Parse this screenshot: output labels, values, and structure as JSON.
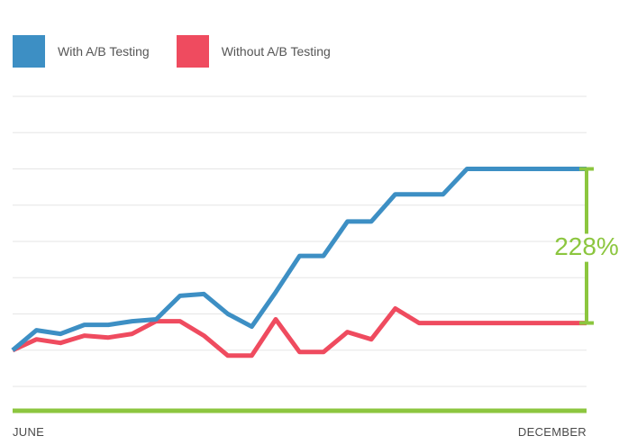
{
  "legend": [
    {
      "label": "With A/B Testing",
      "color": "#3d8fc4"
    },
    {
      "label": "Without A/B Testing",
      "color": "#ef4b5f"
    }
  ],
  "delta_label": "228%",
  "delta_color": "#8cc63f",
  "chart_data": {
    "type": "line",
    "xlabel_start": "JUNE",
    "xlabel_end": "DECEMBER",
    "x": [
      0,
      1,
      2,
      3,
      4,
      5,
      6,
      7,
      8,
      9,
      10,
      11,
      12,
      13,
      14,
      15,
      16,
      17,
      18,
      19,
      20,
      21,
      22,
      23,
      24
    ],
    "ylim": [
      0,
      8
    ],
    "series": [
      {
        "name": "With A/B Testing",
        "color": "#3d8fc4",
        "values": [
          1.0,
          1.55,
          1.45,
          1.7,
          1.7,
          1.8,
          1.85,
          2.5,
          2.55,
          2.0,
          1.65,
          2.6,
          3.6,
          3.6,
          4.55,
          4.55,
          5.3,
          5.3,
          5.3,
          6.0,
          6.0,
          6.0,
          6.0,
          6.0,
          6.0
        ]
      },
      {
        "name": "Without A/B Testing",
        "color": "#ef4b5f",
        "values": [
          1.0,
          1.3,
          1.2,
          1.4,
          1.35,
          1.45,
          1.8,
          1.8,
          1.4,
          0.85,
          0.85,
          1.85,
          0.95,
          0.95,
          1.5,
          1.3,
          2.15,
          1.75,
          1.75,
          1.75,
          1.75,
          1.75,
          1.75,
          1.75,
          1.75
        ]
      }
    ]
  }
}
